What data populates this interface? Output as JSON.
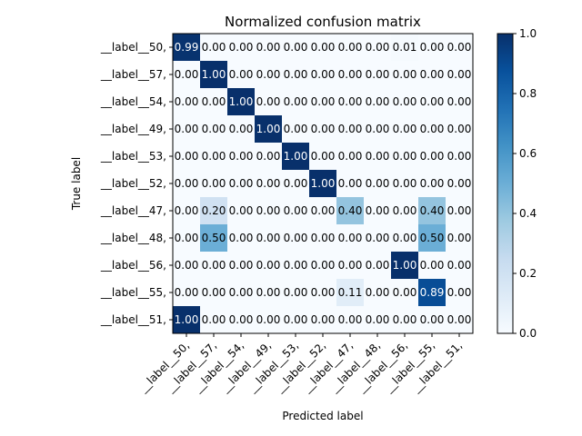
{
  "chart_data": {
    "type": "heatmap",
    "title": "Normalized confusion matrix",
    "xlabel": "Predicted label",
    "ylabel": "True label",
    "categories": [
      "__label__50,",
      "__label__57,",
      "__label__54,",
      "__label__49,",
      "__label__53,",
      "__label__52,",
      "__label__47,",
      "__label__48,",
      "__label__56,",
      "__label__55,",
      "__label__51,"
    ],
    "values": [
      [
        "0.99",
        "0.00",
        "0.00",
        "0.00",
        "0.00",
        "0.00",
        "0.00",
        "0.00",
        "0.01",
        "0.00",
        "0.00"
      ],
      [
        "0.00",
        "1.00",
        "0.00",
        "0.00",
        "0.00",
        "0.00",
        "0.00",
        "0.00",
        "0.00",
        "0.00",
        "0.00"
      ],
      [
        "0.00",
        "0.00",
        "1.00",
        "0.00",
        "0.00",
        "0.00",
        "0.00",
        "0.00",
        "0.00",
        "0.00",
        "0.00"
      ],
      [
        "0.00",
        "0.00",
        "0.00",
        "1.00",
        "0.00",
        "0.00",
        "0.00",
        "0.00",
        "0.00",
        "0.00",
        "0.00"
      ],
      [
        "0.00",
        "0.00",
        "0.00",
        "0.00",
        "1.00",
        "0.00",
        "0.00",
        "0.00",
        "0.00",
        "0.00",
        "0.00"
      ],
      [
        "0.00",
        "0.00",
        "0.00",
        "0.00",
        "0.00",
        "1.00",
        "0.00",
        "0.00",
        "0.00",
        "0.00",
        "0.00"
      ],
      [
        "0.00",
        "0.20",
        "0.00",
        "0.00",
        "0.00",
        "0.00",
        "0.40",
        "0.00",
        "0.00",
        "0.40",
        "0.00"
      ],
      [
        "0.00",
        "0.50",
        "0.00",
        "0.00",
        "0.00",
        "0.00",
        "0.00",
        "0.00",
        "0.00",
        "0.50",
        "0.00"
      ],
      [
        "0.00",
        "0.00",
        "0.00",
        "0.00",
        "0.00",
        "0.00",
        "0.00",
        "0.00",
        "1.00",
        "0.00",
        "0.00"
      ],
      [
        "0.00",
        "0.00",
        "0.00",
        "0.00",
        "0.00",
        "0.00",
        "0.11",
        "0.00",
        "0.00",
        "0.89",
        "0.00"
      ],
      [
        "1.00",
        "0.00",
        "0.00",
        "0.00",
        "0.00",
        "0.00",
        "0.00",
        "0.00",
        "0.00",
        "0.00",
        "0.00"
      ]
    ],
    "colorbar": {
      "range": [
        0.0,
        1.0
      ],
      "ticks": [
        "0.0",
        "0.2",
        "0.4",
        "0.6",
        "0.8",
        "1.0"
      ],
      "colormap": "Blues"
    },
    "grid": false,
    "legend": "colorbar-right"
  },
  "colors": {
    "text_dark": "#000000",
    "text_light": "#ffffff",
    "cmap_blues": [
      "#f7fbff",
      "#deebf7",
      "#c6dbef",
      "#9ecae1",
      "#6baed6",
      "#4292c6",
      "#2171b5",
      "#08519c",
      "#08306b"
    ]
  }
}
